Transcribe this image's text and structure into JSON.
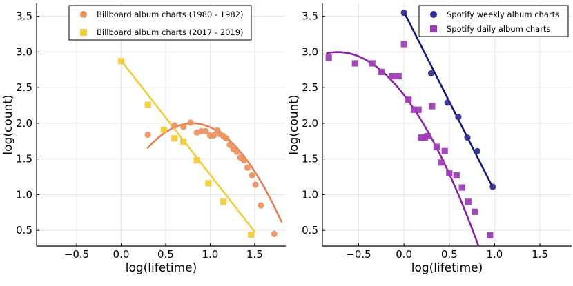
{
  "chart_data": [
    {
      "type": "scatter",
      "title": "",
      "xlabel": "log(lifetime)",
      "ylabel": "log(count)",
      "xlim": [
        -0.95,
        1.85
      ],
      "ylim": [
        0.28,
        3.68
      ],
      "xticks": [
        -0.5,
        0.0,
        0.5,
        1.0,
        1.5
      ],
      "xtick_labels": [
        "−0.5",
        "0.0",
        "0.5",
        "1.0",
        "1.5"
      ],
      "yticks": [
        0.5,
        1.0,
        1.5,
        2.0,
        2.5,
        3.0,
        3.5
      ],
      "ytick_labels": [
        "0.5",
        "1.0",
        "1.5",
        "2.0",
        "2.5",
        "3.0",
        "3.5"
      ],
      "grid": true,
      "legend_position": "top-right",
      "series": [
        {
          "name": "Billboard album charts (1980 - 1982)",
          "color": "#ED9060",
          "marker": "circle",
          "x": [
            0.3,
            0.48,
            0.6,
            0.7,
            0.78,
            0.85,
            0.9,
            0.95,
            1.0,
            1.04,
            1.08,
            1.11,
            1.15,
            1.18,
            1.22,
            1.26,
            1.3,
            1.34,
            1.38,
            1.42,
            1.47,
            1.51,
            1.57,
            1.72
          ],
          "y": [
            1.84,
            1.91,
            1.97,
            1.95,
            2.01,
            1.87,
            1.89,
            1.89,
            1.83,
            1.83,
            1.9,
            1.85,
            1.82,
            1.79,
            1.7,
            1.64,
            1.6,
            1.52,
            1.48,
            1.38,
            1.27,
            1.14,
            0.85,
            0.45
          ]
        },
        {
          "name": "Billboard album charts (2017 - 2019)",
          "color": "#F2CC3C",
          "marker": "square",
          "x": [
            0.0,
            0.3,
            0.48,
            0.6,
            0.7,
            0.85,
            0.98,
            1.15,
            1.46
          ],
          "y": [
            2.87,
            2.26,
            1.91,
            1.79,
            1.74,
            1.48,
            1.16,
            0.9,
            0.44
          ]
        }
      ],
      "fits": [
        {
          "series": "Billboard album charts (1980 - 1982)",
          "color": "#E87E50",
          "shape": "quadratic",
          "x_range": [
            0.3,
            1.8
          ],
          "coefficients": [
            -1.378,
            2.205,
            1.118
          ]
        },
        {
          "series": "Billboard album charts (2017 - 2019)",
          "color": "#F2CC3C",
          "shape": "linear",
          "x_range": [
            0.0,
            1.5
          ],
          "coefficients": [
            -1.6,
            2.88
          ]
        }
      ]
    },
    {
      "type": "scatter",
      "title": "",
      "xlabel": "log(lifetime)",
      "ylabel": "log(count)",
      "xlim": [
        -0.9,
        1.85
      ],
      "ylim": [
        0.28,
        3.68
      ],
      "xticks": [
        -0.5,
        0.0,
        0.5,
        1.0,
        1.5
      ],
      "xtick_labels": [
        "−0.5",
        "0.0",
        "0.5",
        "1.0",
        "1.5"
      ],
      "yticks": [
        0.5,
        1.0,
        1.5,
        2.0,
        2.5,
        3.0,
        3.5
      ],
      "ytick_labels": [
        "0.5",
        "1.0",
        "1.5",
        "2.0",
        "2.5",
        "3.0",
        "3.5"
      ],
      "grid": true,
      "legend_position": "top-right",
      "series": [
        {
          "name": "Spotify weekly album charts",
          "color": "#2E2E8C",
          "marker": "circle",
          "x": [
            0.0,
            0.3,
            0.48,
            0.6,
            0.7,
            0.81,
            0.98
          ],
          "y": [
            3.55,
            2.7,
            2.29,
            2.09,
            1.8,
            1.61,
            1.11
          ]
        },
        {
          "name": "Spotify daily album charts",
          "color": "#9E3DB8",
          "marker": "square",
          "x": [
            -0.83,
            -0.54,
            -0.35,
            -0.25,
            -0.13,
            -0.06,
            0.0,
            0.05,
            0.11,
            0.16,
            0.19,
            0.23,
            0.26,
            0.31,
            0.36,
            0.41,
            0.45,
            0.5,
            0.58,
            0.64,
            0.71,
            0.78,
            0.95
          ],
          "y": [
            2.92,
            2.84,
            2.84,
            2.72,
            2.66,
            2.66,
            3.11,
            2.33,
            2.19,
            2.19,
            1.8,
            1.8,
            1.82,
            2.24,
            1.67,
            1.45,
            1.61,
            1.3,
            1.27,
            1.1,
            0.9,
            0.76,
            0.43
          ]
        }
      ],
      "fits": [
        {
          "series": "Spotify weekly album charts",
          "color": "#141480",
          "shape": "linear",
          "x_range": [
            0.0,
            0.98
          ],
          "coefficients": [
            -2.51,
            3.56
          ]
        },
        {
          "series": "Spotify daily album charts",
          "color": "#8A1FA8",
          "shape": "quadratic",
          "x_range": [
            -0.85,
            0.95
          ],
          "coefficients": [
            -1.126,
            -1.647,
            2.396
          ]
        }
      ]
    }
  ]
}
